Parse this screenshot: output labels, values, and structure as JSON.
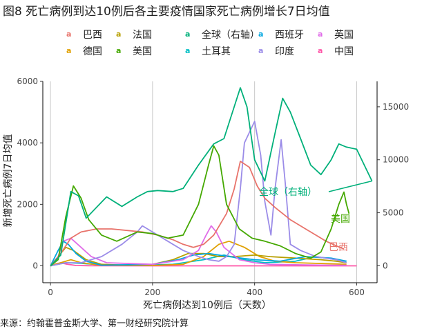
{
  "figure": {
    "title": "图8 死亡病例到达10例后各主要疫情国家死亡病例增长7日均值",
    "source": "来源：约翰霍普金斯大学、第一财经研究院计算"
  },
  "legend": [
    {
      "name": "巴西",
      "color": "#e8736b"
    },
    {
      "name": "法国",
      "color": "#b79f00"
    },
    {
      "name": "全球（右轴）",
      "color": "#00b07a"
    },
    {
      "name": "西班牙",
      "color": "#00a6e0"
    },
    {
      "name": "英国",
      "color": "#e06ce8"
    },
    {
      "name": "德国",
      "color": "#e0a000"
    },
    {
      "name": "美国",
      "color": "#44a800"
    },
    {
      "name": "土耳其",
      "color": "#00bfc4"
    },
    {
      "name": "印度",
      "color": "#9b8ce8"
    },
    {
      "name": "中国",
      "color": "#ff55a8"
    }
  ],
  "chart_data": {
    "type": "line",
    "xlabel": "死亡病例达到10例后（天数）",
    "ylabel": "新增死亡病例7日均值",
    "xlim": [
      -15,
      640
    ],
    "xticks": [
      0,
      200,
      400,
      600
    ],
    "ylim": [
      -550,
      6000
    ],
    "yticks": [
      0,
      2000,
      4000,
      6000
    ],
    "y2lim": [
      -1600,
      17400
    ],
    "y2ticks": [
      0,
      5000,
      10000,
      15000
    ],
    "grid": "vertical",
    "series": [
      {
        "name": "全球（右轴）",
        "axis": "right",
        "color": "#00b07a",
        "x": [
          0,
          20,
          40,
          55,
          70,
          90,
          110,
          140,
          170,
          190,
          210,
          240,
          260,
          290,
          320,
          340,
          360,
          372,
          385,
          400,
          420,
          440,
          455,
          470,
          490,
          510,
          530,
          550,
          565,
          580,
          600,
          620,
          630
        ],
        "y": [
          0,
          1000,
          7000,
          6600,
          4500,
          5500,
          6500,
          5600,
          6500,
          7000,
          7100,
          7000,
          7300,
          9500,
          11500,
          12000,
          15000,
          16800,
          15000,
          10000,
          8000,
          12500,
          15800,
          14500,
          12000,
          9500,
          8600,
          10000,
          11500,
          11200,
          11000,
          9000,
          8000
        ]
      },
      {
        "name": "美国",
        "axis": "left",
        "color": "#44a800",
        "x": [
          0,
          15,
          30,
          45,
          60,
          75,
          100,
          130,
          170,
          200,
          230,
          260,
          290,
          310,
          320,
          330,
          345,
          370,
          395,
          420,
          450,
          480,
          510,
          530,
          550,
          565,
          575,
          580,
          585
        ],
        "y": [
          0,
          200,
          1600,
          2600,
          2200,
          1500,
          1000,
          800,
          1100,
          1050,
          900,
          1000,
          2000,
          3300,
          3900,
          3600,
          2000,
          1200,
          900,
          800,
          650,
          400,
          250,
          450,
          1200,
          2000,
          2400,
          2000,
          1700
        ]
      },
      {
        "name": "巴西",
        "axis": "left",
        "color": "#e8736b",
        "x": [
          0,
          20,
          40,
          60,
          90,
          120,
          150,
          180,
          210,
          240,
          260,
          280,
          300,
          320,
          345,
          360,
          372,
          390,
          405,
          420,
          440,
          470,
          500,
          520,
          540,
          560,
          575
        ],
        "y": [
          0,
          400,
          900,
          1100,
          1200,
          1200,
          1150,
          1100,
          1000,
          850,
          700,
          600,
          700,
          1000,
          1700,
          2500,
          3400,
          3200,
          2600,
          2200,
          1900,
          1500,
          1200,
          1000,
          800,
          650,
          550
        ]
      },
      {
        "name": "印度",
        "axis": "left",
        "color": "#9b8ce8",
        "x": [
          0,
          30,
          60,
          100,
          140,
          170,
          180,
          200,
          230,
          260,
          290,
          310,
          330,
          345,
          360,
          372,
          380,
          400,
          412,
          420,
          432,
          440,
          452,
          460,
          470,
          490,
          520,
          560,
          580
        ],
        "y": [
          0,
          100,
          100,
          300,
          700,
          1100,
          1300,
          1100,
          800,
          500,
          300,
          200,
          150,
          300,
          700,
          2500,
          4000,
          4700,
          3600,
          2100,
          1000,
          2500,
          4100,
          2700,
          700,
          500,
          300,
          200,
          100
        ]
      },
      {
        "name": "英国",
        "axis": "left",
        "color": "#e06ce8",
        "x": [
          0,
          15,
          25,
          40,
          60,
          80,
          110,
          200,
          260,
          290,
          305,
          315,
          325,
          340,
          370,
          400,
          430,
          460,
          500,
          550,
          580
        ],
        "y": [
          0,
          300,
          800,
          900,
          600,
          300,
          100,
          50,
          200,
          500,
          1000,
          1300,
          1100,
          600,
          200,
          100,
          50,
          40,
          30,
          20,
          20
        ]
      },
      {
        "name": "法国",
        "axis": "left",
        "color": "#b79f00",
        "x": [
          0,
          15,
          30,
          45,
          70,
          100,
          150,
          200,
          240,
          270,
          300,
          330,
          360,
          400,
          430,
          480,
          530,
          560,
          580
        ],
        "y": [
          0,
          300,
          600,
          500,
          200,
          50,
          20,
          50,
          200,
          400,
          400,
          300,
          300,
          350,
          300,
          250,
          200,
          150,
          100
        ]
      },
      {
        "name": "德国",
        "axis": "left",
        "color": "#e0a000",
        "x": [
          0,
          20,
          40,
          60,
          100,
          200,
          260,
          300,
          330,
          350,
          380,
          410,
          440,
          480,
          520,
          560,
          580
        ],
        "y": [
          0,
          100,
          200,
          100,
          20,
          10,
          50,
          300,
          700,
          800,
          600,
          300,
          150,
          100,
          80,
          60,
          50
        ]
      },
      {
        "name": "西班牙",
        "axis": "left",
        "color": "#00a6e0",
        "x": [
          0,
          15,
          25,
          35,
          50,
          70,
          100,
          200,
          250,
          280,
          310,
          350,
          400,
          450,
          500,
          550,
          580
        ],
        "y": [
          0,
          500,
          800,
          700,
          400,
          150,
          20,
          50,
          200,
          350,
          400,
          300,
          200,
          150,
          300,
          250,
          150
        ]
      },
      {
        "name": "土耳其",
        "axis": "left",
        "color": "#00bfc4",
        "x": [
          0,
          30,
          60,
          100,
          200,
          240,
          300,
          340,
          380,
          420,
          480,
          520,
          560,
          580
        ],
        "y": [
          0,
          100,
          80,
          30,
          30,
          50,
          200,
          350,
          200,
          100,
          150,
          300,
          200,
          150
        ]
      },
      {
        "name": "中国",
        "axis": "left",
        "color": "#ff55a8",
        "x": [
          0,
          10,
          20,
          30,
          50,
          80,
          200,
          400,
          600
        ],
        "y": [
          0,
          60,
          100,
          60,
          10,
          2,
          0,
          0,
          0
        ]
      }
    ],
    "annotations": [
      {
        "text": "全球（右轴）",
        "color": "#00b07a"
      },
      {
        "text": "美国",
        "color": "#44a800"
      },
      {
        "text": "巴西",
        "color": "#e8736b"
      }
    ]
  }
}
